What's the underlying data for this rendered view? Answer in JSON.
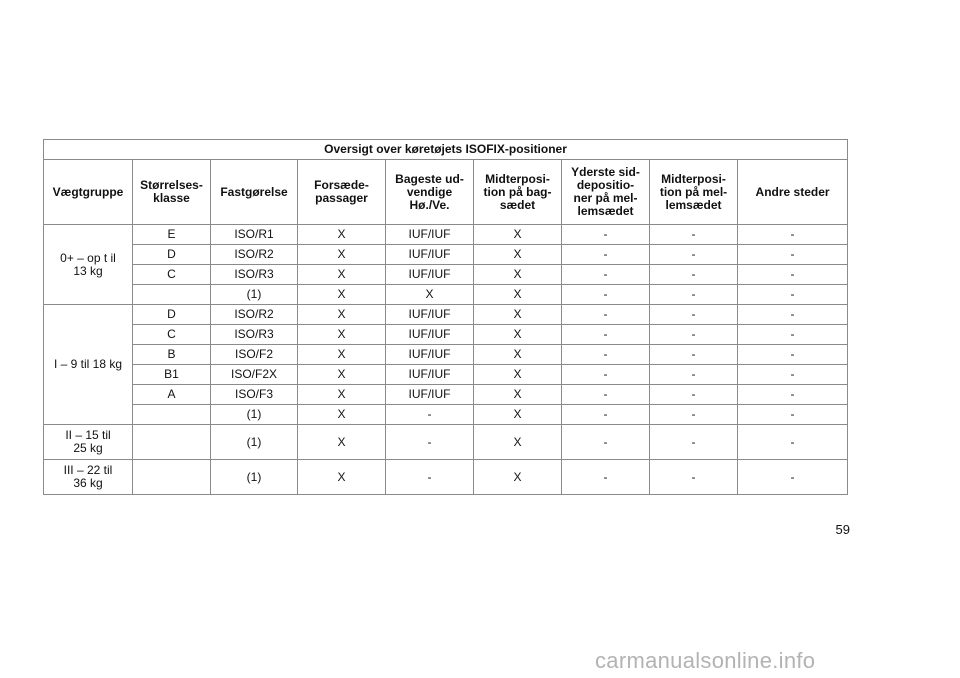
{
  "table": {
    "title": "Oversigt over køretøjets ISOFIX-positioner",
    "headers": [
      "Vægtgruppe",
      "Størrelses-\nklasse",
      "Fastgørelse",
      "Forsæde-\npassager",
      "Bageste ud-\nvendige\nHø./Ve.",
      "Midterposi-\ntion på bag-\nsædet",
      "Yderste sid-\ndepositio-\nner på mel-\nlemsædet",
      "Midterposi-\ntion på mel-\nlemsædet",
      "Andre steder"
    ],
    "groups": [
      {
        "label": "0+ – op t il\n13 kg",
        "rows": [
          [
            "E",
            "ISO/R1",
            "X",
            "IUF/IUF",
            "X",
            "-",
            "-",
            "-"
          ],
          [
            "D",
            "ISO/R2",
            "X",
            "IUF/IUF",
            "X",
            "-",
            "-",
            "-"
          ],
          [
            "C",
            "ISO/R3",
            "X",
            "IUF/IUF",
            "X",
            "-",
            "-",
            "-"
          ],
          [
            "",
            "(1)",
            "X",
            "X",
            "X",
            "-",
            "-",
            "-"
          ]
        ]
      },
      {
        "label": "I – 9 til 18 kg",
        "rows": [
          [
            "D",
            "ISO/R2",
            "X",
            "IUF/IUF",
            "X",
            "-",
            "-",
            "-"
          ],
          [
            "C",
            "ISO/R3",
            "X",
            "IUF/IUF",
            "X",
            "-",
            "-",
            "-"
          ],
          [
            "B",
            "ISO/F2",
            "X",
            "IUF/IUF",
            "X",
            "-",
            "-",
            "-"
          ],
          [
            "B1",
            "ISO/F2X",
            "X",
            "IUF/IUF",
            "X",
            "-",
            "-",
            "-"
          ],
          [
            "A",
            "ISO/F3",
            "X",
            "IUF/IUF",
            "X",
            "-",
            "-",
            "-"
          ],
          [
            "",
            "(1)",
            "X",
            "-",
            "X",
            "-",
            "-",
            "-"
          ]
        ]
      },
      {
        "label": "II – 15 til\n25 kg",
        "rows": [
          [
            "",
            "(1)",
            "X",
            "-",
            "X",
            "-",
            "-",
            "-"
          ]
        ]
      },
      {
        "label": "III – 22 til\n36 kg",
        "rows": [
          [
            "",
            "(1)",
            "X",
            "-",
            "X",
            "-",
            "-",
            "-"
          ]
        ]
      }
    ]
  },
  "page_number": "59",
  "watermark": "carmanualsonline.info"
}
